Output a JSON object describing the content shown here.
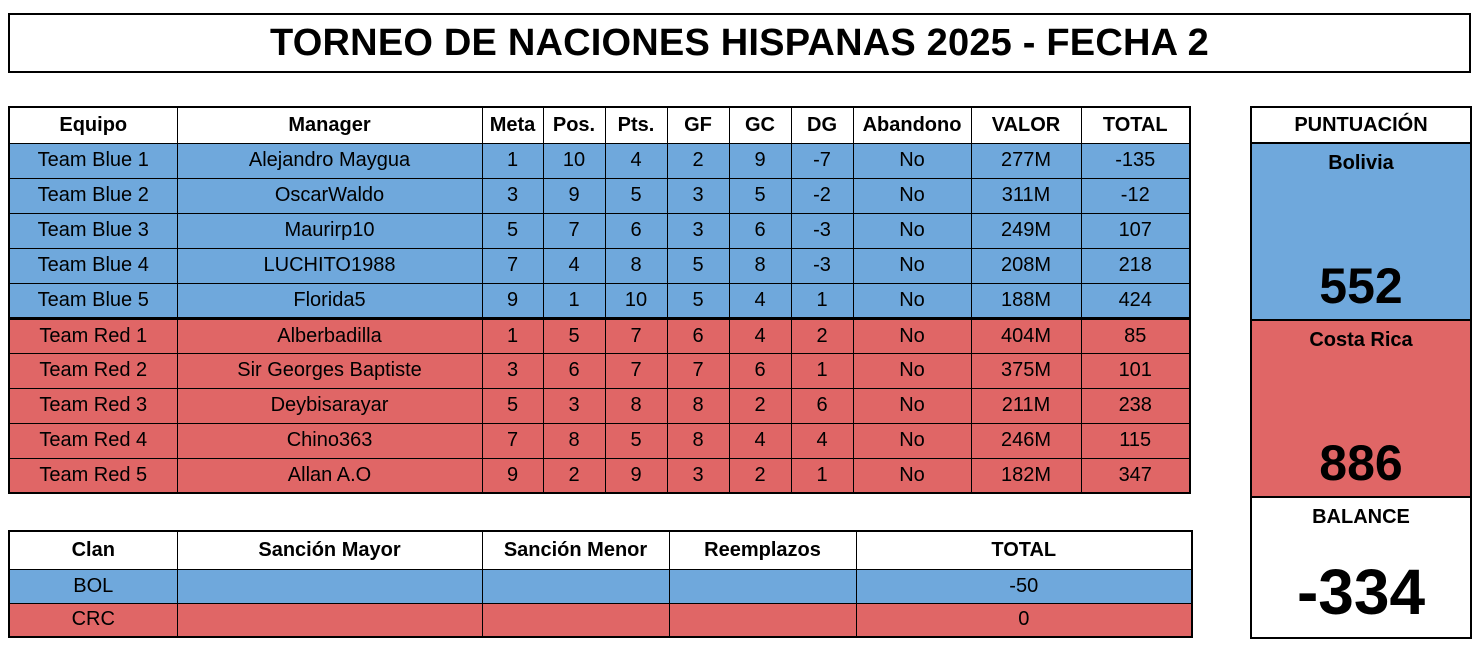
{
  "title": "TORNEO DE NACIONES HISPANAS 2025 - FECHA 2",
  "main_table": {
    "headers": [
      "Equipo",
      "Manager",
      "Meta",
      "Pos.",
      "Pts.",
      "GF",
      "GC",
      "DG",
      "Abandono",
      "VALOR",
      "TOTAL"
    ],
    "rows": [
      {
        "team": "blue",
        "cells": [
          "Team Blue 1",
          "Alejandro Maygua",
          "1",
          "10",
          "4",
          "2",
          "9",
          "-7",
          "No",
          "277M",
          "-135"
        ]
      },
      {
        "team": "blue",
        "cells": [
          "Team Blue 2",
          "OscarWaldo",
          "3",
          "9",
          "5",
          "3",
          "5",
          "-2",
          "No",
          "311M",
          "-12"
        ]
      },
      {
        "team": "blue",
        "cells": [
          "Team Blue 3",
          "Maurirp10",
          "5",
          "7",
          "6",
          "3",
          "6",
          "-3",
          "No",
          "249M",
          "107"
        ]
      },
      {
        "team": "blue",
        "cells": [
          "Team Blue 4",
          "LUCHITO1988",
          "7",
          "4",
          "8",
          "5",
          "8",
          "-3",
          "No",
          "208M",
          "218"
        ]
      },
      {
        "team": "blue",
        "cells": [
          "Team Blue 5",
          "Florida5",
          "9",
          "1",
          "10",
          "5",
          "4",
          "1",
          "No",
          "188M",
          "424"
        ]
      },
      {
        "team": "red",
        "cells": [
          "Team Red 1",
          "Alberbadilla",
          "1",
          "5",
          "7",
          "6",
          "4",
          "2",
          "No",
          "404M",
          "85"
        ]
      },
      {
        "team": "red",
        "cells": [
          "Team Red 2",
          "Sir Georges Baptiste",
          "3",
          "6",
          "7",
          "7",
          "6",
          "1",
          "No",
          "375M",
          "101"
        ]
      },
      {
        "team": "red",
        "cells": [
          "Team Red 3",
          "Deybisarayar",
          "5",
          "3",
          "8",
          "8",
          "2",
          "6",
          "No",
          "211M",
          "238"
        ]
      },
      {
        "team": "red",
        "cells": [
          "Team Red 4",
          "Chino363",
          "7",
          "8",
          "5",
          "8",
          "4",
          "4",
          "No",
          "246M",
          "115"
        ]
      },
      {
        "team": "red",
        "cells": [
          "Team Red 5",
          "Allan A.O",
          "9",
          "2",
          "9",
          "3",
          "2",
          "1",
          "No",
          "182M",
          "347"
        ]
      }
    ]
  },
  "clan_table": {
    "headers": [
      "Clan",
      "Sanción Mayor",
      "Sanción Menor",
      "Reemplazos",
      "TOTAL"
    ],
    "rows": [
      {
        "team": "blue",
        "cells": [
          "BOL",
          "",
          "",
          "",
          "-50"
        ]
      },
      {
        "team": "red",
        "cells": [
          "CRC",
          "",
          "",
          "",
          "0"
        ]
      }
    ]
  },
  "score_panel": {
    "header": "PUNTUACIÓN",
    "team_a": {
      "name": "Bolivia",
      "score": "552"
    },
    "team_b": {
      "name": "Costa Rica",
      "score": "886"
    },
    "balance": {
      "label": "BALANCE",
      "value": "-334"
    }
  },
  "colors": {
    "blue": "#6fa8dc",
    "red": "#e06666"
  }
}
